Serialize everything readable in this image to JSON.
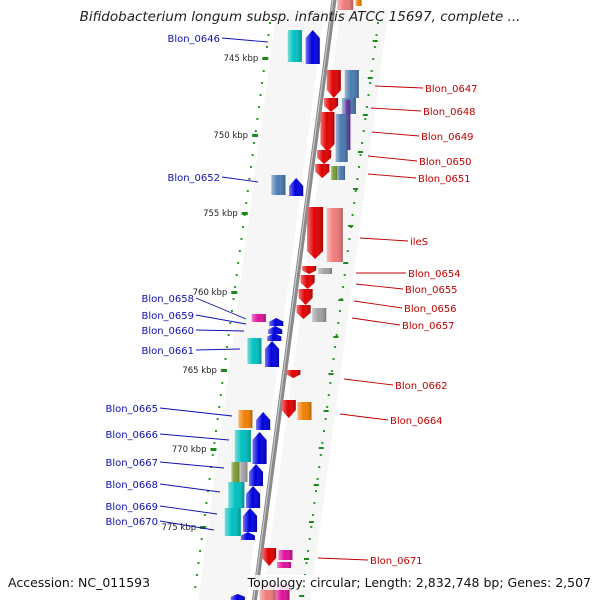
{
  "header": {
    "title": "Bifidobacterium longum subsp. infantis ATCC 15697, complete ..."
  },
  "footer": {
    "accession": "Accession: NC_011593",
    "summary": "Topology: circular; Length: 2,832,748 bp; Genes: 2,507"
  },
  "colors": {
    "backbone": "#8a8a8a",
    "left_label": "#1010b0",
    "right_label": "#c00000",
    "tick": "#1a8a1a",
    "dot": "#2a9a2a",
    "forward_red": "#e00000",
    "blue": "#0000e0",
    "cyan": "#00c0c0",
    "steelblue": "#4a7ab0",
    "orange": "#f08000",
    "olive": "#7a9a30",
    "gray": "#a0a0a0",
    "magenta": "#e0109a",
    "salmon": "#f07a7a",
    "purple": "#6030a0"
  },
  "scale_labels": [
    {
      "text": "745 kbp"
    },
    {
      "text": "750 kbp"
    },
    {
      "text": "755 kbp"
    },
    {
      "text": "760 kbp"
    },
    {
      "text": "765 kbp"
    },
    {
      "text": "770 kbp"
    },
    {
      "text": "775 kbp"
    }
  ],
  "left_genes": [
    {
      "label": "Blon_0646"
    },
    {
      "label": "Blon_0652"
    },
    {
      "label": "Blon_0658"
    },
    {
      "label": "Blon_0659"
    },
    {
      "label": "Blon_0660"
    },
    {
      "label": "Blon_0661"
    },
    {
      "label": "Blon_0665"
    },
    {
      "label": "Blon_0666"
    },
    {
      "label": "Blon_0667"
    },
    {
      "label": "Blon_0668"
    },
    {
      "label": "Blon_0669"
    },
    {
      "label": "Blon_0670"
    }
  ],
  "right_genes": [
    {
      "label": "Blon_0647"
    },
    {
      "label": "Blon_0648"
    },
    {
      "label": "Blon_0649"
    },
    {
      "label": "Blon_0650"
    },
    {
      "label": "Blon_0651"
    },
    {
      "label": "ileS"
    },
    {
      "label": "Blon_0654"
    },
    {
      "label": "Blon_0655"
    },
    {
      "label": "Blon_0656"
    },
    {
      "label": "Blon_0657"
    },
    {
      "label": "Blon_0662"
    },
    {
      "label": "Blon_0664"
    },
    {
      "label": "Blon_0671"
    }
  ]
}
